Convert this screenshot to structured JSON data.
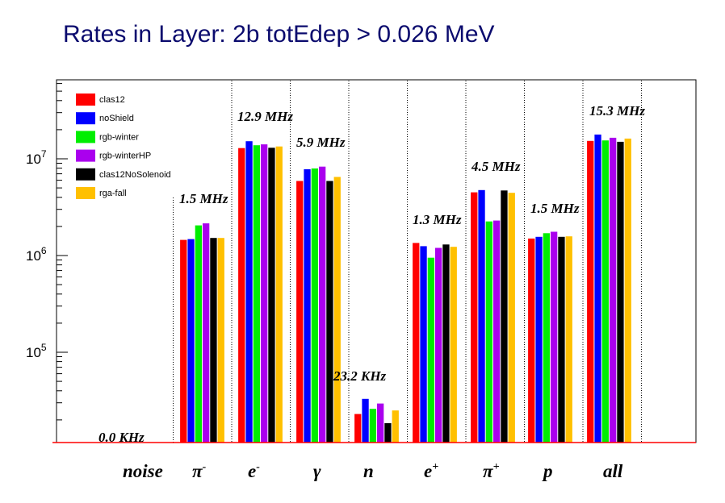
{
  "chart_data": {
    "type": "bar",
    "title": "Rates in Layer: 2b    totEdep > 0.026 MeV",
    "yscale": "log",
    "ylim": [
      10000,
      600000000
    ],
    "y_ticks": [
      {
        "value": 100000,
        "base": "10",
        "exp": "5"
      },
      {
        "value": 1000000,
        "base": "10",
        "exp": "6"
      },
      {
        "value": 10000000,
        "base": "10",
        "exp": "7"
      }
    ],
    "categories": [
      {
        "base": "noise",
        "sup": ""
      },
      {
        "base": "π",
        "sup": "-"
      },
      {
        "base": "e",
        "sup": "-"
      },
      {
        "base": "γ",
        "sup": ""
      },
      {
        "base": "n",
        "sup": ""
      },
      {
        "base": "e",
        "sup": "+"
      },
      {
        "base": "π",
        "sup": "+"
      },
      {
        "base": "p",
        "sup": ""
      },
      {
        "base": "all",
        "sup": ""
      }
    ],
    "rate_labels": [
      "0.0 KHz",
      "1.5 MHz",
      "12.9 MHz",
      "5.9 MHz",
      "23.2 KHz",
      "1.3 MHz",
      "4.5 MHz",
      "1.5 MHz",
      "15.3 MHz"
    ],
    "series": [
      {
        "name": "clas12",
        "color": "#ff0000",
        "values": [
          0,
          1450000,
          12900000,
          5900000,
          23000,
          1350000,
          4500000,
          1500000,
          15300000
        ]
      },
      {
        "name": "noShield",
        "color": "#0000ff",
        "values": [
          0,
          1480000,
          15200000,
          7800000,
          33000,
          1250000,
          4750000,
          1560000,
          17800000
        ]
      },
      {
        "name": "rgb-winter",
        "color": "#00ee00",
        "values": [
          0,
          2050000,
          13800000,
          7950000,
          26000,
          950000,
          2250000,
          1700000,
          15500000
        ]
      },
      {
        "name": "rgb-winterHP",
        "color": "#aa00ee",
        "values": [
          0,
          2150000,
          14100000,
          8300000,
          29500,
          1200000,
          2300000,
          1760000,
          16500000
        ]
      },
      {
        "name": "clas12NoSolenoid",
        "color": "#000000",
        "values": [
          0,
          1520000,
          13000000,
          5900000,
          18500,
          1300000,
          4700000,
          1560000,
          15000000
        ]
      },
      {
        "name": "rga-fall",
        "color": "#ffc000",
        "values": [
          0,
          1520000,
          13400000,
          6500000,
          25000,
          1230000,
          4450000,
          1580000,
          16200000
        ]
      }
    ],
    "legend_position": "top-left",
    "grid": false
  }
}
